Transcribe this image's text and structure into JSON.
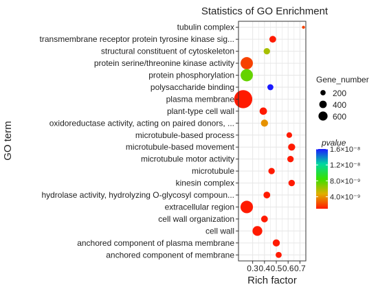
{
  "chart_data": {
    "type": "scatter",
    "title": "Statistics of GO Enrichment",
    "xlabel": "Rich factor",
    "ylabel": "GO term",
    "xlim": [
      0.18,
      0.75
    ],
    "x_ticks": [
      0.3,
      0.4,
      0.5,
      0.6,
      0.7
    ],
    "x_tick_labels": [
      "0.3",
      "0.4",
      "0.5",
      "0.6",
      "0.7"
    ],
    "grid": true,
    "legend_position": "right",
    "categories": [
      "tubulin complex",
      "transmembrane receptor protein tyrosine kinase sig...",
      "structural constituent of cytoskeleton",
      "protein serine/threonine kinase activity",
      "protein phosphorylation",
      "polysaccharide binding",
      "plasma membrane",
      "plant-type cell wall",
      "oxidoreductase activity, acting on paired donors, ...",
      "microtubule-based process",
      "microtubule-based movement",
      "microtubule motor activity",
      "microtubule",
      "kinesin complex",
      "hydrolase activity, hydrolyzing O-glycosyl compoun...",
      "extracellular region",
      "cell wall organization",
      "cell wall",
      "anchored component of plasma membrane",
      "anchored component of membrane"
    ],
    "points": [
      {
        "term": "tubulin complex",
        "rich_factor": 0.73,
        "gene_number": 20,
        "pvalue": 2e-09
      },
      {
        "term": "transmembrane receptor protein tyrosine kinase sig...",
        "rich_factor": 0.47,
        "gene_number": 100,
        "pvalue": 1e-09
      },
      {
        "term": "structural constituent of cytoskeleton",
        "rich_factor": 0.42,
        "gene_number": 90,
        "pvalue": 6e-09
      },
      {
        "term": "protein serine/threonine kinase activity",
        "rich_factor": 0.25,
        "gene_number": 330,
        "pvalue": 2e-09
      },
      {
        "term": "protein phosphorylation",
        "rich_factor": 0.25,
        "gene_number": 330,
        "pvalue": 7.5e-09
      },
      {
        "term": "polysaccharide binding",
        "rich_factor": 0.45,
        "gene_number": 80,
        "pvalue": 1.6e-08
      },
      {
        "term": "plasma membrane",
        "rich_factor": 0.22,
        "gene_number": 720,
        "pvalue": 1e-09
      },
      {
        "term": "plant-type cell wall",
        "rich_factor": 0.39,
        "gene_number": 120,
        "pvalue": 1e-09
      },
      {
        "term": "oxidoreductase activity, acting on paired donors, ...",
        "rich_factor": 0.4,
        "gene_number": 110,
        "pvalue": 4e-09
      },
      {
        "term": "microtubule-based process",
        "rich_factor": 0.61,
        "gene_number": 70,
        "pvalue": 1e-09
      },
      {
        "term": "microtubule-based movement",
        "rich_factor": 0.63,
        "gene_number": 110,
        "pvalue": 1e-09
      },
      {
        "term": "microtubule motor activity",
        "rich_factor": 0.62,
        "gene_number": 90,
        "pvalue": 1e-09
      },
      {
        "term": "microtubule",
        "rich_factor": 0.46,
        "gene_number": 90,
        "pvalue": 1e-09
      },
      {
        "term": "kinesin complex",
        "rich_factor": 0.63,
        "gene_number": 90,
        "pvalue": 1e-09
      },
      {
        "term": "hydrolase activity, hydrolyzing O-glycosyl compoun...",
        "rich_factor": 0.42,
        "gene_number": 100,
        "pvalue": 1e-09
      },
      {
        "term": "extracellular region",
        "rich_factor": 0.25,
        "gene_number": 340,
        "pvalue": 1e-09
      },
      {
        "term": "cell wall organization",
        "rich_factor": 0.4,
        "gene_number": 100,
        "pvalue": 1e-09
      },
      {
        "term": "cell wall",
        "rich_factor": 0.34,
        "gene_number": 210,
        "pvalue": 1e-09
      },
      {
        "term": "anchored component of plasma membrane",
        "rich_factor": 0.5,
        "gene_number": 110,
        "pvalue": 1e-09
      },
      {
        "term": "anchored component of membrane",
        "rich_factor": 0.52,
        "gene_number": 80,
        "pvalue": 1e-09
      }
    ],
    "size_legend": {
      "title": "Gene_number",
      "entries": [
        {
          "label": "200",
          "value": 200
        },
        {
          "label": "400",
          "value": 400
        },
        {
          "label": "600",
          "value": 600
        }
      ]
    },
    "color_legend": {
      "title": "pvalue",
      "min": 1e-09,
      "max": 1.6e-08,
      "low_color": "#ff1a00",
      "high_color": "#1a1aff",
      "stops": [
        {
          "value": 0.0,
          "color": "#ff1a00"
        },
        {
          "value": 0.25,
          "color": "#e0b000"
        },
        {
          "value": 0.5,
          "color": "#38e000"
        },
        {
          "value": 0.75,
          "color": "#00d8a0"
        },
        {
          "value": 1.0,
          "color": "#1a1aff"
        }
      ],
      "ticks": [
        {
          "label": "1.6×10⁻⁸",
          "value": 1.6e-08
        },
        {
          "label": "1.2×10⁻⁸",
          "value": 1.2e-08
        },
        {
          "label": "8.0×10⁻⁹",
          "value": 8e-09
        },
        {
          "label": "4.0×10⁻⁹",
          "value": 4e-09
        }
      ]
    },
    "colors": {
      "panel_background": "#ffffff",
      "grid": "#e6e6e6",
      "border": "#333333"
    }
  }
}
